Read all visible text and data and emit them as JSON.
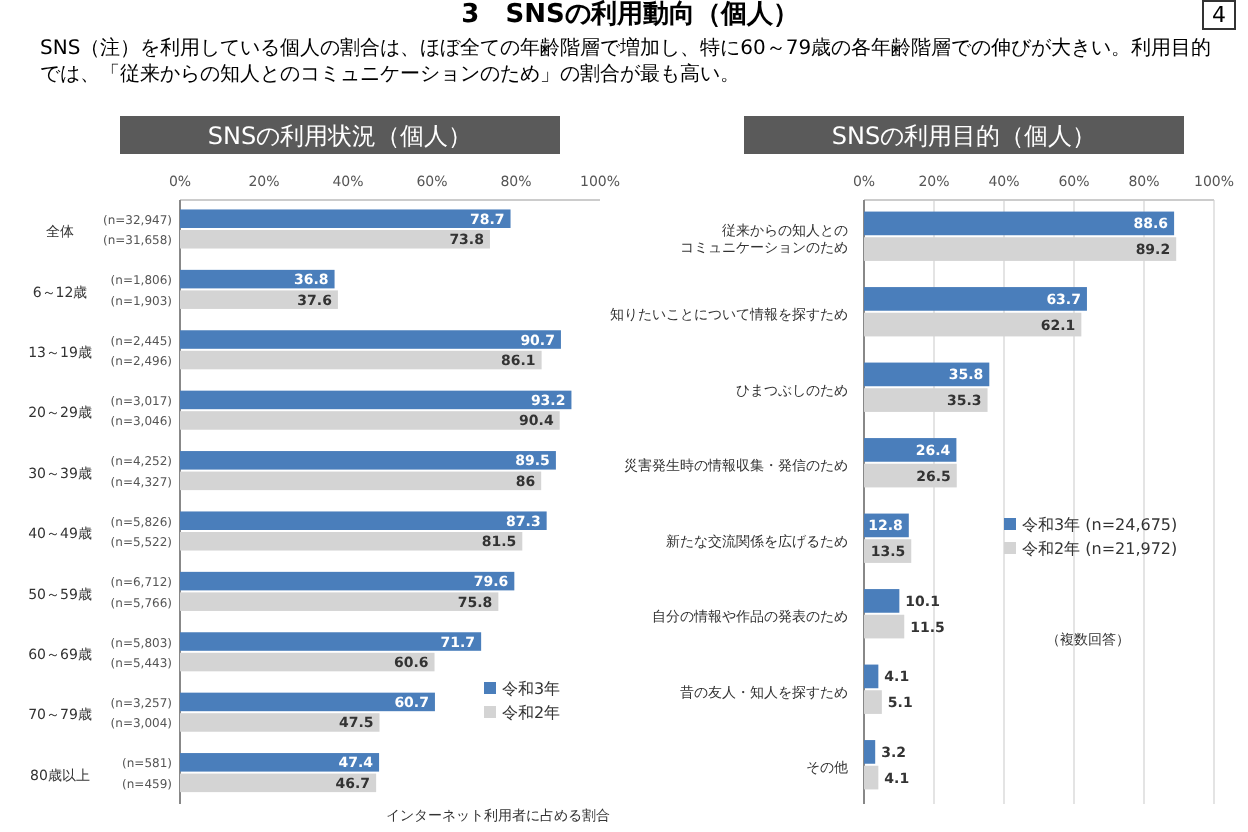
{
  "chart_data": [
    {
      "type": "bar",
      "orientation": "horizontal",
      "title": "SNSの利用状況（個人）",
      "categories": [
        "全体",
        "6～12歳",
        "13～19歳",
        "20～29歳",
        "30～39歳",
        "40～49歳",
        "50～59歳",
        "60～69歳",
        "70～79歳",
        "80歳以上"
      ],
      "series": [
        {
          "name": "令和3年",
          "color": "#4a7ebb",
          "values": [
            78.7,
            36.8,
            90.7,
            93.2,
            89.5,
            87.3,
            79.6,
            71.7,
            60.7,
            47.4
          ]
        },
        {
          "name": "令和2年",
          "color": "#d4d4d4",
          "values": [
            73.8,
            37.6,
            86.1,
            90.4,
            86.0,
            81.5,
            75.8,
            60.6,
            47.5,
            46.7
          ]
        }
      ],
      "xlim": [
        0,
        100
      ],
      "xticks": [
        {
          "value": 0,
          "label": "0%"
        },
        {
          "value": 20,
          "label": "20%"
        },
        {
          "value": 40,
          "label": "40%"
        },
        {
          "value": 60,
          "label": "60%"
        },
        {
          "value": 80,
          "label": "80%"
        },
        {
          "value": 100,
          "label": "100%"
        }
      ],
      "grid": false,
      "legend": "bottom right",
      "data_labels": true,
      "annotations": [
        "3　SNSの利用動向（個人）",
        "4",
        "SNS（注）を利用している個人の割合は、ほぼ全ての年齢階層で増加し、特に60～79歳の各年齢階層での伸びが大きい。利用目的では、「従来からの知人とのコミュニケーションのため」の割合が最も高い。",
        "インターネット利用者に占める割合",
        "(n=32,947)",
        "(n=31,658)",
        "(n=1,806)",
        "(n=1,903)",
        "(n=2,445)",
        "(n=2,496)",
        "(n=3,017)",
        "(n=3,046)",
        "(n=4,252)",
        "(n=4,327)",
        "(n=5,826)",
        "(n=5,522)",
        "(n=6,712)",
        "(n=5,766)",
        "(n=5,803)",
        "(n=5,443)",
        "(n=3,257)",
        "(n=3,004)",
        "(n=581)",
        "(n=459)"
      ]
    },
    {
      "type": "bar",
      "orientation": "horizontal",
      "title": "SNSの利用目的（個人）",
      "categories": [
        "従来からの知人とのコミュニケーションのため",
        "知りたいことについて情報を探すため",
        "ひまつぶしのため",
        "災害発生時の情報収集・発信のため",
        "新たな交流関係を広げるため",
        "自分の情報や作品の発表のため",
        "昔の友人・知人を探すため",
        "その他"
      ],
      "series": [
        {
          "name": "令和3年 (n=24,675)",
          "color": "#4a7ebb",
          "values": [
            88.6,
            63.7,
            35.8,
            26.4,
            12.8,
            10.1,
            4.1,
            3.2
          ]
        },
        {
          "name": "令和2年 (n=21,972)",
          "color": "#d4d4d4",
          "values": [
            89.2,
            62.1,
            35.3,
            26.5,
            13.5,
            11.5,
            5.1,
            4.1
          ]
        }
      ],
      "xlim": [
        0,
        100
      ],
      "xticks": [
        {
          "value": 0,
          "label": "0%"
        },
        {
          "value": 20,
          "label": "20%"
        },
        {
          "value": 40,
          "label": "40%"
        },
        {
          "value": 60,
          "label": "60%"
        },
        {
          "value": 80,
          "label": "80%"
        },
        {
          "value": 100,
          "label": "100%"
        }
      ],
      "grid": "x",
      "legend": "right",
      "data_labels": true,
      "annotations": [
        "（複数回答）"
      ]
    }
  ]
}
